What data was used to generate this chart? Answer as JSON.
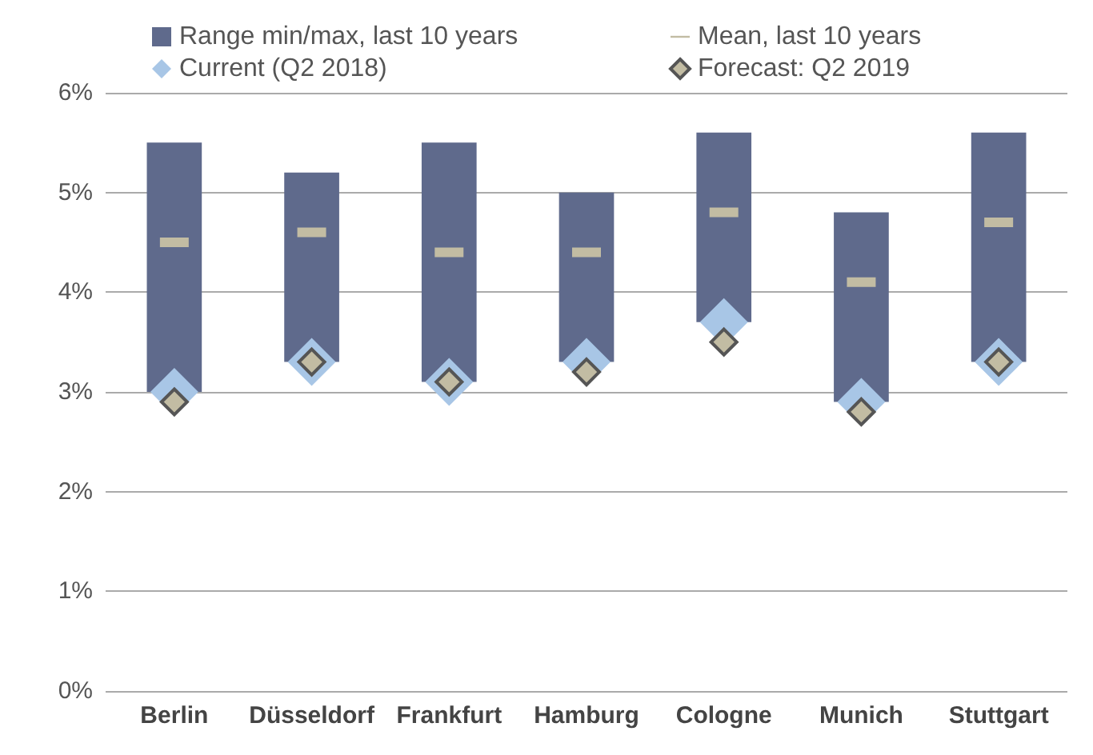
{
  "chart_data": {
    "type": "bar",
    "categories": [
      "Berlin",
      "Düsseldorf",
      "Frankfurt",
      "Hamburg",
      "Cologne",
      "Munich",
      "Stuttgart"
    ],
    "series": [
      {
        "name": "Range min/max, last 10 years",
        "color": "#5f6a8c",
        "base": [
          3.0,
          3.3,
          3.1,
          3.3,
          3.7,
          2.9,
          3.3
        ],
        "values": [
          2.5,
          1.9,
          2.4,
          1.7,
          1.9,
          1.9,
          2.3
        ]
      },
      {
        "name": "Mean, last 10 years",
        "type": "scatter",
        "marker": "square",
        "color": "#c2bca3",
        "values": [
          4.5,
          4.6,
          4.4,
          4.4,
          4.8,
          4.1,
          4.7
        ]
      },
      {
        "name": "Current (Q2 2018)",
        "type": "scatter",
        "marker": "diamond",
        "color": "#a8c6e6",
        "values": [
          3.0,
          3.3,
          3.1,
          3.3,
          3.7,
          2.9,
          3.3
        ]
      },
      {
        "name": "Forecast: Q2 2019",
        "type": "scatter",
        "marker": "diamond",
        "color": "#c2bca3",
        "values": [
          2.9,
          3.3,
          3.1,
          3.2,
          3.5,
          2.8,
          3.3
        ]
      }
    ],
    "ylim": [
      0,
      6
    ],
    "yticks": [
      {
        "value": 0,
        "label": "0%"
      },
      {
        "value": 1,
        "label": "1%"
      },
      {
        "value": 2,
        "label": "2%"
      },
      {
        "value": 3,
        "label": "3%"
      },
      {
        "value": 4,
        "label": "4%"
      },
      {
        "value": 5,
        "label": "5%"
      },
      {
        "value": 6,
        "label": "6%"
      }
    ],
    "grid": "y",
    "legend": "top"
  }
}
